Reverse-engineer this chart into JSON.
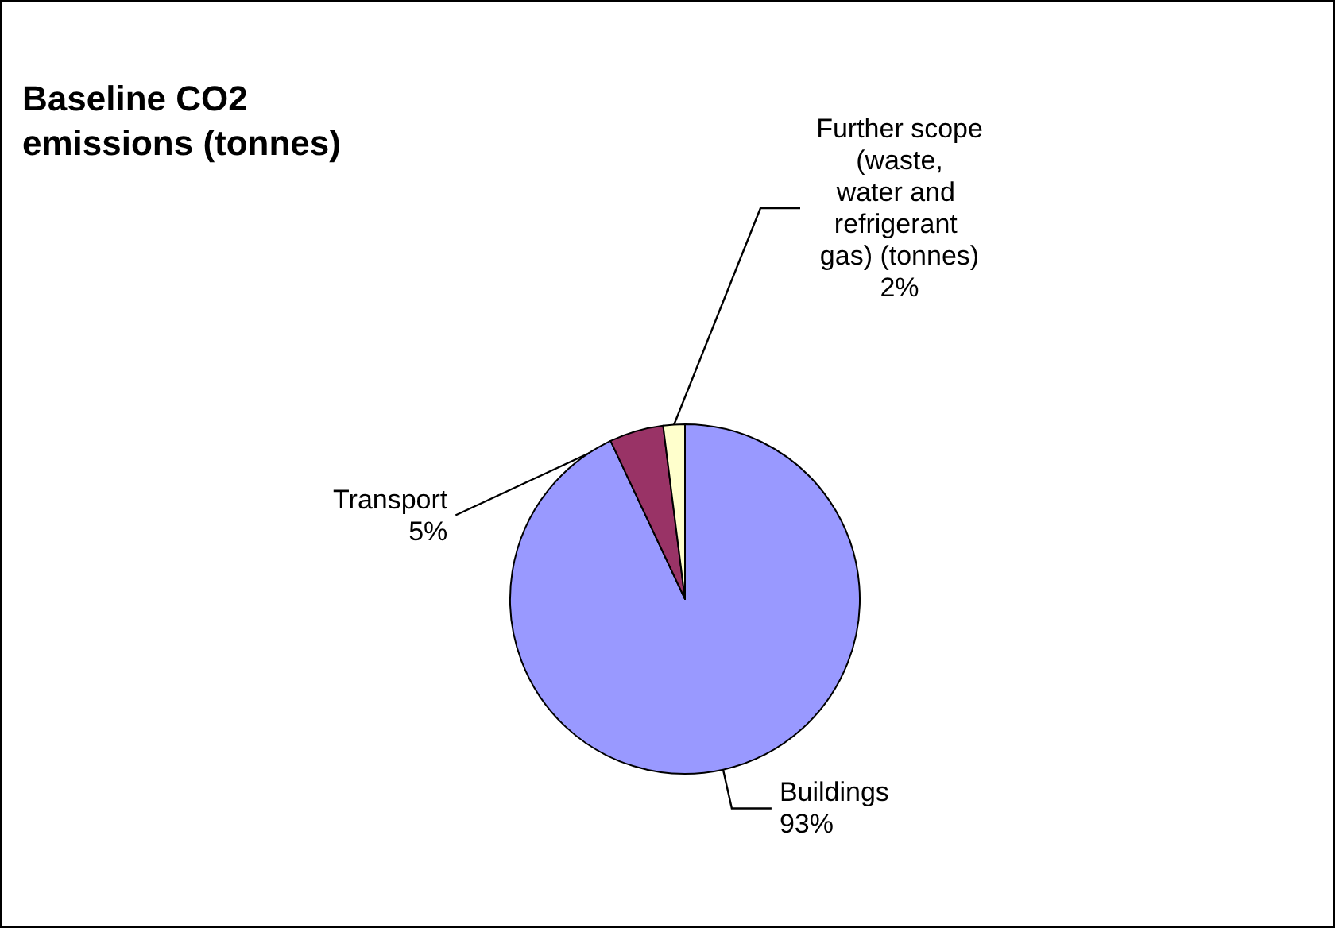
{
  "chart_data": {
    "type": "pie",
    "title": "Baseline CO2 emissions (tonnes)",
    "categories": [
      "Buildings",
      "Transport",
      "Further scope (waste, water and refrigerant gas) (tonnes)"
    ],
    "values": [
      93,
      5,
      2
    ],
    "colors": [
      "#9999ff",
      "#993366",
      "#ffffcc"
    ],
    "value_labels": [
      "93%",
      "5%",
      "2%"
    ],
    "legend": false
  }
}
